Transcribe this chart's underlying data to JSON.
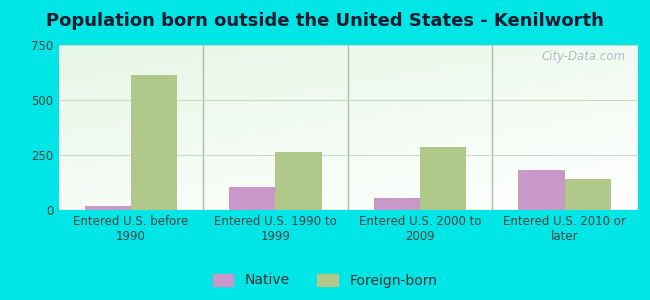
{
  "title": "Population born outside the United States - Kenilworth",
  "categories": [
    "Entered U.S. before\n1990",
    "Entered U.S. 1990 to\n1999",
    "Entered U.S. 2000 to\n2009",
    "Entered U.S. 2010 or\nlater"
  ],
  "native_values": [
    18,
    105,
    55,
    180
  ],
  "foreign_values": [
    615,
    265,
    285,
    140
  ],
  "native_color": "#c899c8",
  "foreign_color": "#b0c88a",
  "background_color": "#00e5e5",
  "ylim": [
    0,
    750
  ],
  "yticks": [
    0,
    250,
    500,
    750
  ],
  "bar_width": 0.32,
  "title_fontsize": 13,
  "tick_fontsize": 8.5,
  "legend_fontsize": 10,
  "watermark_text": "City-Data.com",
  "grid_color": "#c8dcc8",
  "divider_color": "#aabcaa"
}
